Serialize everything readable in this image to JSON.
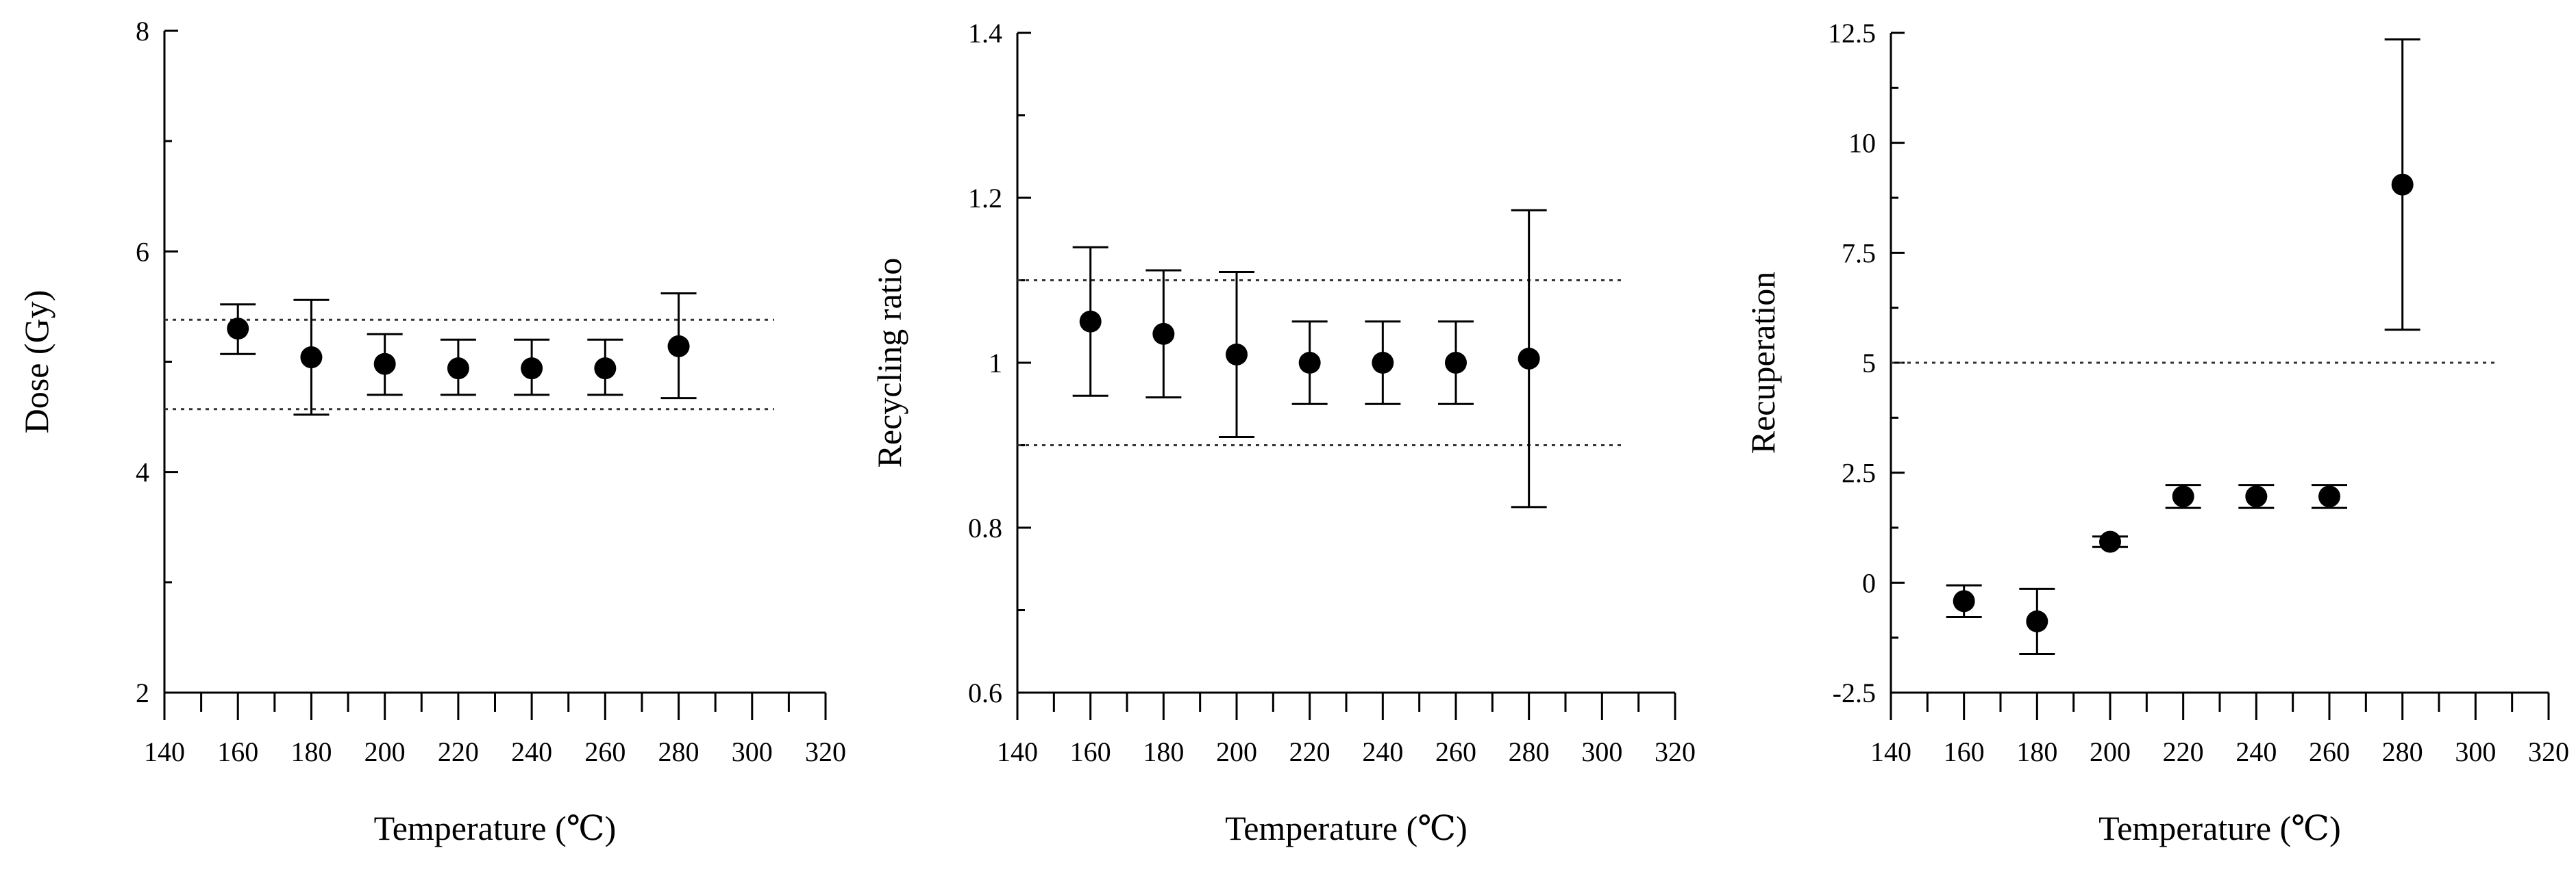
{
  "chart_data": [
    {
      "type": "scatter",
      "title": "",
      "xlabel": "Temperature (℃)",
      "ylabel": "Dose (Gy)",
      "xlim": [
        140,
        320
      ],
      "ylim": [
        2,
        8
      ],
      "xticks": [
        "140",
        "160",
        "180",
        "200",
        "220",
        "240",
        "260",
        "280",
        "300",
        "320"
      ],
      "yticks": [
        "2",
        "4",
        "6",
        "8"
      ],
      "reference_lines": [
        4.57,
        5.38
      ],
      "points": [
        {
          "x": 160,
          "y": 5.3,
          "low": 5.07,
          "high": 5.52
        },
        {
          "x": 180,
          "y": 5.04,
          "low": 4.52,
          "high": 5.56
        },
        {
          "x": 200,
          "y": 4.98,
          "low": 4.7,
          "high": 5.25
        },
        {
          "x": 220,
          "y": 4.94,
          "low": 4.7,
          "high": 5.2
        },
        {
          "x": 240,
          "y": 4.94,
          "low": 4.7,
          "high": 5.2
        },
        {
          "x": 260,
          "y": 4.94,
          "low": 4.7,
          "high": 5.2
        },
        {
          "x": 280,
          "y": 5.14,
          "low": 4.67,
          "high": 5.62
        }
      ]
    },
    {
      "type": "scatter",
      "title": "",
      "xlabel": "Temperature (℃)",
      "ylabel": "Recycling  ratio",
      "xlim": [
        140,
        320
      ],
      "ylim": [
        0.6,
        1.4
      ],
      "xticks": [
        "140",
        "160",
        "180",
        "200",
        "220",
        "240",
        "260",
        "280",
        "300",
        "320"
      ],
      "yticks": [
        "0.6",
        "0.8",
        "1",
        "1.2",
        "1.4"
      ],
      "reference_lines": [
        0.9,
        1.1
      ],
      "points": [
        {
          "x": 160,
          "y": 1.05,
          "low": 0.96,
          "high": 1.14
        },
        {
          "x": 180,
          "y": 1.035,
          "low": 0.958,
          "high": 1.112
        },
        {
          "x": 200,
          "y": 1.01,
          "low": 0.91,
          "high": 1.11
        },
        {
          "x": 220,
          "y": 1.0,
          "low": 0.95,
          "high": 1.05
        },
        {
          "x": 240,
          "y": 1.0,
          "low": 0.95,
          "high": 1.05
        },
        {
          "x": 260,
          "y": 1.0,
          "low": 0.95,
          "high": 1.05
        },
        {
          "x": 280,
          "y": 1.005,
          "low": 0.825,
          "high": 1.185
        }
      ]
    },
    {
      "type": "scatter",
      "title": "",
      "xlabel": "Temperature (℃)",
      "ylabel": "Recuperation",
      "xlim": [
        140,
        320
      ],
      "ylim": [
        -2.5,
        12.5
      ],
      "xticks": [
        "140",
        "160",
        "180",
        "200",
        "220",
        "240",
        "260",
        "280",
        "300",
        "320"
      ],
      "yticks": [
        "-2.5",
        "0",
        "2.5",
        "5",
        "7.5",
        "10",
        "12.5"
      ],
      "reference_lines": [
        5
      ],
      "points": [
        {
          "x": 160,
          "y": -0.42,
          "low": -0.78,
          "high": -0.06
        },
        {
          "x": 180,
          "y": -0.88,
          "low": -1.62,
          "high": -0.14
        },
        {
          "x": 200,
          "y": 0.93,
          "low": 0.81,
          "high": 1.05
        },
        {
          "x": 220,
          "y": 1.96,
          "low": 1.7,
          "high": 2.22
        },
        {
          "x": 240,
          "y": 1.96,
          "low": 1.7,
          "high": 2.22
        },
        {
          "x": 260,
          "y": 1.96,
          "low": 1.7,
          "high": 2.22
        },
        {
          "x": 280,
          "y": 9.05,
          "low": 5.75,
          "high": 12.35
        }
      ]
    }
  ]
}
